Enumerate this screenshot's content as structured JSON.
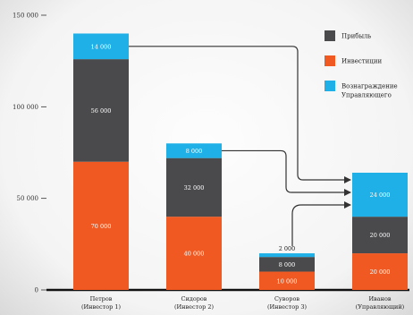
{
  "chart_data": {
    "type": "bar",
    "stacked": true,
    "categories": [
      [
        "Петров",
        "(Инвестор 1)"
      ],
      [
        "Сидоров",
        "(Инвестор 2)"
      ],
      [
        "Суворов",
        "(Инвестор 3)"
      ],
      [
        "Иванов",
        "(Управляющий)"
      ]
    ],
    "series": [
      {
        "name": "Инвестиции",
        "color": "#f05a22",
        "values": [
          70000,
          40000,
          10000,
          20000
        ]
      },
      {
        "name": "Прибыль",
        "color": "#4a4a4c",
        "values": [
          56000,
          32000,
          8000,
          20000
        ]
      },
      {
        "name": "Вознаграждение Управляющего",
        "color": "#1eb0e6",
        "values": [
          14000,
          8000,
          2000,
          24000
        ]
      }
    ],
    "value_labels": [
      [
        "70 000",
        "56 000",
        "14 000"
      ],
      [
        "40 000",
        "32 000",
        "8 000"
      ],
      [
        "10 000",
        "8 000",
        "2 000"
      ],
      [
        "20 000",
        "20 000",
        "24 000"
      ]
    ],
    "ylim": [
      0,
      150000
    ],
    "yticks": [
      0,
      50000,
      100000,
      150000
    ],
    "ytick_labels": [
      "0",
      "50 000",
      "100 000",
      "150 000"
    ],
    "legend": {
      "placement": "top-right",
      "entries": [
        {
          "label": "Прибыль",
          "color": "#4a4a4c"
        },
        {
          "label": "Инвестиции",
          "color": "#f05a22"
        },
        {
          "label_lines": [
            "Вознаграждение",
            "Управляющего"
          ],
          "color": "#1eb0e6"
        }
      ]
    },
    "arrows": [
      {
        "from_category": 0,
        "to_category": 3,
        "series": "Вознаграждение Управляющего"
      },
      {
        "from_category": 1,
        "to_category": 3,
        "series": "Вознаграждение Управляющего"
      },
      {
        "from_category": 2,
        "to_category": 3,
        "series": "Вознаграждение Управляющего"
      }
    ],
    "grid": false,
    "title": "",
    "xlabel": "",
    "ylabel": ""
  }
}
